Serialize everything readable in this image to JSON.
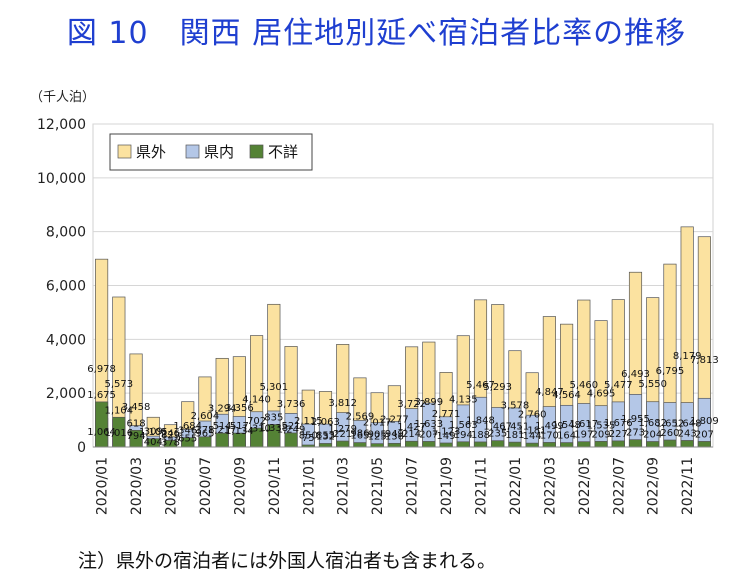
{
  "chart_data": {
    "type": "bar",
    "stacked": true,
    "title": "図 10　関西 居住地別延べ宿泊者比率の推移",
    "ylabel": "（千人泊）",
    "ylim": [
      0,
      12000
    ],
    "yticks": [
      0,
      2000,
      4000,
      6000,
      8000,
      10000,
      12000
    ],
    "grid": true,
    "legend_position": "top-left",
    "categories": [
      "2020/01",
      "2020/02",
      "2020/03",
      "2020/04",
      "2020/05",
      "2020/06",
      "2020/07",
      "2020/08",
      "2020/09",
      "2020/10",
      "2020/11",
      "2020/12",
      "2021/01",
      "2021/02",
      "2021/03",
      "2021/04",
      "2021/05",
      "2021/06",
      "2021/07",
      "2021/08",
      "2021/09",
      "2021/10",
      "2021/11",
      "2021/12",
      "2022/01",
      "2022/02",
      "2022/03",
      "2022/04",
      "2022/05",
      "2022/06",
      "2022/07",
      "2022/08",
      "2022/09",
      "2022/10",
      "2022/11",
      "2022/12"
    ],
    "xtick_labels": [
      "2020/01",
      "",
      "2020/03",
      "",
      "2020/05",
      "",
      "2020/07",
      "",
      "2020/09",
      "",
      "2020/11",
      "",
      "2021/01",
      "",
      "2021/03",
      "",
      "2021/05",
      "",
      "2021/07",
      "",
      "2021/09",
      "",
      "2021/11",
      "",
      "2022/01",
      "",
      "2022/03",
      "",
      "2022/05",
      "",
      "2022/07",
      "",
      "2022/09",
      "",
      "2022/11",
      ""
    ],
    "series": [
      {
        "name": "県外",
        "color": "#fbe2a0",
        "values": [
          6978,
          5573,
          3458,
          1105,
          829,
          1684,
          2604,
          3294,
          3356,
          4140,
          5301,
          3736,
          2115,
          2063,
          3812,
          2569,
          2017,
          2277,
          3722,
          3899,
          2771,
          4135,
          5467,
          5293,
          3578,
          2760,
          4847,
          4564,
          5460,
          4695,
          5477,
          6493,
          5550,
          6795,
          8179,
          7813
        ],
        "labels": [
          "6,978",
          "5,573",
          "3,458",
          "1,105",
          "829",
          "1,684",
          "2,604",
          "3,294",
          "3,356",
          "4,140",
          "5,301",
          "3,736",
          "2,115",
          "2,063",
          "3,812",
          "2,569",
          "2,017",
          "2,277",
          "3,722",
          "3,899",
          "2,771",
          "4,135",
          "5,467",
          "5,293",
          "3,578",
          "2,760",
          "4,847",
          "4,564",
          "5,460",
          "4,695",
          "5,477",
          "6,493",
          "5,550",
          "6,795",
          "8,179",
          "7,813"
        ]
      },
      {
        "name": "県内",
        "color": "#b4c7e7",
        "values": [
          1064,
          1016,
          794,
          404,
          378,
          655,
          965,
          1217,
          1134,
          1310,
          1338,
          1249,
          850,
          853,
          1279,
          986,
          905,
          949,
          1427,
          1633,
          1123,
          1563,
          1848,
          1467,
          1451,
          1181,
          1499,
          1548,
          1617,
          1535,
          1676,
          1955,
          1682,
          1652,
          1648,
          1809
        ],
        "labels": [
          "1,064",
          "1,016",
          "794",
          "404",
          "378",
          "655",
          "965",
          "1,217",
          "1,134",
          "1,310",
          "1,338",
          "1,249",
          "850",
          "853",
          "1,279",
          "986",
          "905",
          "949",
          "1,427",
          "1,633",
          "1,123",
          "1,563",
          "1,848",
          "1,467",
          "1,451",
          "1,181",
          "1,499",
          "1,548",
          "1,617",
          "1,535",
          "1,676",
          "1,955",
          "1,682",
          "1,652",
          "1,648",
          "1,809"
        ]
      },
      {
        "name": "不詳",
        "color": "#548235",
        "values": [
          1675,
          1104,
          618,
          309,
          246,
          346,
          378,
          514,
          517,
          702,
          835,
          521,
          75,
          132,
          221,
          165,
          125,
          136,
          214,
          207,
          149,
          194,
          188,
          235,
          181,
          144,
          170,
          164,
          197,
          209,
          227,
          273,
          204,
          260,
          243,
          207
        ],
        "labels": [
          "1,675",
          "1,104",
          "618",
          "309",
          "246",
          "346",
          "378",
          "514",
          "517",
          "702",
          "835",
          "521",
          "75",
          "132",
          "221",
          "165",
          "125",
          "136",
          "214",
          "207",
          "149",
          "194",
          "188",
          "235",
          "181",
          "144",
          "170",
          "164",
          "197",
          "209",
          "227",
          "273",
          "204",
          "260",
          "243",
          "207"
        ]
      }
    ]
  },
  "footnote": "注）県外の宿泊者には外国人宿泊者も含まれる。"
}
